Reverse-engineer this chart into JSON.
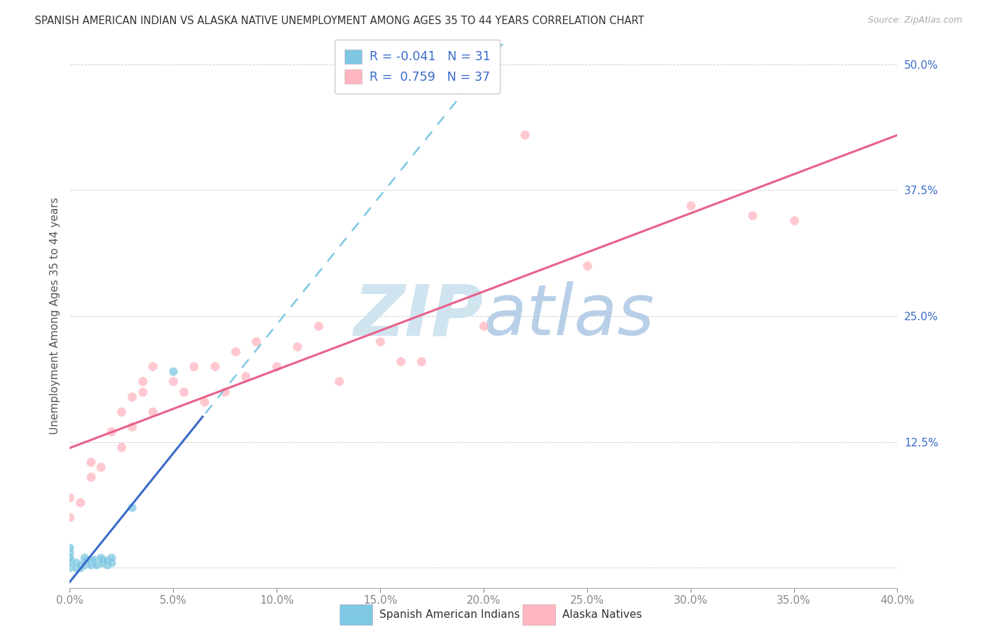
{
  "title": "SPANISH AMERICAN INDIAN VS ALASKA NATIVE UNEMPLOYMENT AMONG AGES 35 TO 44 YEARS CORRELATION CHART",
  "source": "Source: ZipAtlas.com",
  "ylabel_label": "Unemployment Among Ages 35 to 44 years",
  "xlim": [
    0.0,
    0.4
  ],
  "ylim": [
    -0.02,
    0.52
  ],
  "r1": -0.041,
  "n1": 31,
  "r2": 0.759,
  "n2": 37,
  "legend_label1": "Spanish American Indians",
  "legend_label2": "Alaska Natives",
  "color1": "#7ec8e3",
  "color2": "#ffb6c1",
  "trendline1_solid_color": "#3a6bc9",
  "trendline1_dash_color": "#7ec8e3",
  "trendline2_color": "#e8608a",
  "watermark_color": "#d0e4f0",
  "scatter1_x": [
    0.0,
    0.0,
    0.0,
    0.0,
    0.0,
    0.0,
    0.003,
    0.003,
    0.005,
    0.005,
    0.007,
    0.007,
    0.007,
    0.008,
    0.009,
    0.01,
    0.01,
    0.012,
    0.012,
    0.013,
    0.015,
    0.015,
    0.015,
    0.016,
    0.016,
    0.018,
    0.018,
    0.02,
    0.02,
    0.03,
    0.05
  ],
  "scatter1_y": [
    0.0,
    0.005,
    0.008,
    0.01,
    0.015,
    0.02,
    0.0,
    0.005,
    0.0,
    0.003,
    0.003,
    0.006,
    0.01,
    0.008,
    0.005,
    0.003,
    0.007,
    0.005,
    0.008,
    0.003,
    0.005,
    0.008,
    0.01,
    0.005,
    0.008,
    0.003,
    0.007,
    0.005,
    0.01,
    0.06,
    0.195
  ],
  "scatter2_x": [
    0.0,
    0.0,
    0.005,
    0.01,
    0.01,
    0.015,
    0.02,
    0.025,
    0.025,
    0.03,
    0.03,
    0.035,
    0.035,
    0.04,
    0.04,
    0.05,
    0.055,
    0.06,
    0.065,
    0.07,
    0.075,
    0.08,
    0.085,
    0.09,
    0.1,
    0.11,
    0.12,
    0.13,
    0.15,
    0.16,
    0.17,
    0.2,
    0.22,
    0.25,
    0.3,
    0.33,
    0.35
  ],
  "scatter2_y": [
    0.05,
    0.07,
    0.065,
    0.09,
    0.105,
    0.1,
    0.135,
    0.12,
    0.155,
    0.14,
    0.17,
    0.175,
    0.185,
    0.155,
    0.2,
    0.185,
    0.175,
    0.2,
    0.165,
    0.2,
    0.175,
    0.215,
    0.19,
    0.225,
    0.2,
    0.22,
    0.24,
    0.185,
    0.225,
    0.205,
    0.205,
    0.24,
    0.43,
    0.3,
    0.36,
    0.35,
    0.345
  ]
}
